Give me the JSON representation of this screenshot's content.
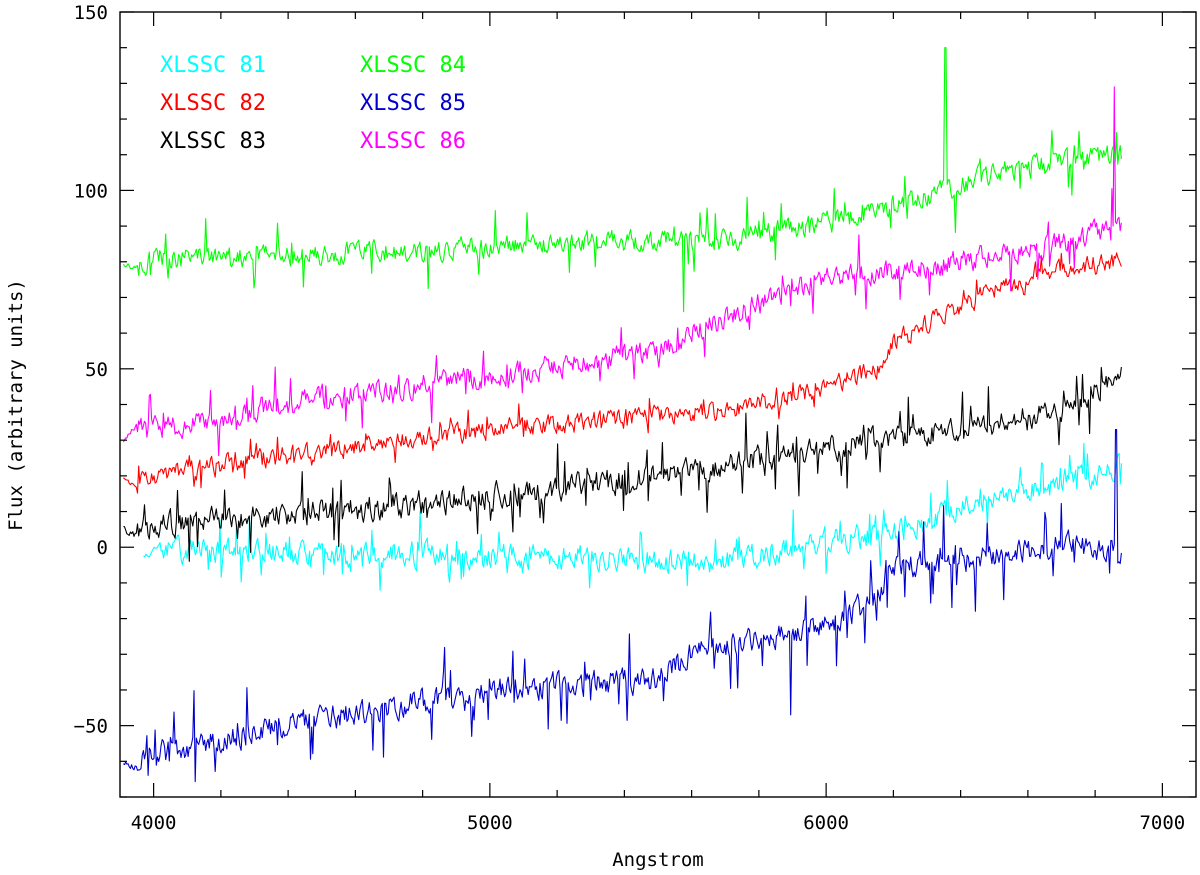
{
  "chart_data": {
    "type": "line",
    "title": "",
    "xlabel": "Angstrom",
    "ylabel": "Flux (arbitrary units)",
    "xlim": [
      3900,
      7100
    ],
    "ylim": [
      -70,
      150
    ],
    "xticks": [
      4000,
      5000,
      6000,
      7000
    ],
    "xtick_labels": [
      "4000",
      "5000",
      "6000",
      "7000"
    ],
    "yticks": [
      -50,
      0,
      50,
      100,
      150
    ],
    "ytick_labels": [
      "−50",
      "0",
      "50",
      "100",
      "150"
    ],
    "legend_position": "top-left",
    "grid": false,
    "series": [
      {
        "name": "XLSSC 81",
        "color": "#00ffff",
        "seed": 81,
        "noise": 3.8,
        "spike_rate": 0.07,
        "spike_size": 9,
        "anchors": [
          [
            3970,
            -3
          ],
          [
            4000,
            -1
          ],
          [
            4500,
            -2
          ],
          [
            5000,
            -2
          ],
          [
            5500,
            -4
          ],
          [
            5700,
            -4
          ],
          [
            6000,
            2
          ],
          [
            6200,
            4
          ],
          [
            6500,
            14
          ],
          [
            6880,
            22
          ]
        ]
      },
      {
        "name": "XLSSC 82",
        "color": "#ff0000",
        "seed": 82,
        "noise": 3.0,
        "spike_rate": 0.05,
        "spike_size": 6,
        "anchors": [
          [
            3910,
            19
          ],
          [
            3950,
            17
          ],
          [
            4000,
            20
          ],
          [
            4500,
            27
          ],
          [
            5000,
            33
          ],
          [
            5500,
            37
          ],
          [
            5700,
            38
          ],
          [
            6000,
            45
          ],
          [
            6150,
            50
          ],
          [
            6200,
            57
          ],
          [
            6400,
            68
          ],
          [
            6600,
            76
          ],
          [
            6800,
            79
          ],
          [
            6880,
            80
          ]
        ]
      },
      {
        "name": "XLSSC 83",
        "color": "#000000",
        "seed": 83,
        "noise": 4.0,
        "spike_rate": 0.08,
        "spike_size": 11,
        "anchors": [
          [
            3910,
            5
          ],
          [
            3950,
            3
          ],
          [
            4000,
            6
          ],
          [
            4500,
            10
          ],
          [
            5000,
            14
          ],
          [
            5500,
            20
          ],
          [
            5700,
            23
          ],
          [
            6000,
            28
          ],
          [
            6500,
            34
          ],
          [
            6700,
            38
          ],
          [
            6880,
            50
          ]
        ]
      },
      {
        "name": "XLSSC 84",
        "color": "#00ff00",
        "seed": 84,
        "noise": 3.3,
        "spike_rate": 0.06,
        "spike_size": 10,
        "anchors": [
          [
            3910,
            80
          ],
          [
            3950,
            78
          ],
          [
            4000,
            81
          ],
          [
            4500,
            82
          ],
          [
            5000,
            84
          ],
          [
            5500,
            86
          ],
          [
            5700,
            86
          ],
          [
            6000,
            91
          ],
          [
            6200,
            95
          ],
          [
            6500,
            105
          ],
          [
            6880,
            110
          ]
        ]
      },
      {
        "name": "XLSSC 85",
        "color": "#0000cc",
        "seed": 85,
        "noise": 3.8,
        "spike_rate": 0.08,
        "spike_size": 13,
        "anchors": [
          [
            3910,
            -60
          ],
          [
            3950,
            -62
          ],
          [
            4000,
            -58
          ],
          [
            4500,
            -48
          ],
          [
            5000,
            -40
          ],
          [
            5500,
            -37
          ],
          [
            5600,
            -30
          ],
          [
            6000,
            -22
          ],
          [
            6150,
            -15
          ],
          [
            6200,
            -5
          ],
          [
            6500,
            -3
          ],
          [
            6700,
            1
          ],
          [
            6880,
            -2
          ]
        ]
      },
      {
        "name": "XLSSC 86",
        "color": "#ff00ff",
        "seed": 86,
        "noise": 3.6,
        "spike_rate": 0.06,
        "spike_size": 9,
        "anchors": [
          [
            3910,
            30
          ],
          [
            3950,
            34
          ],
          [
            4000,
            33
          ],
          [
            4500,
            42
          ],
          [
            5000,
            48
          ],
          [
            5500,
            55
          ],
          [
            5600,
            60
          ],
          [
            6000,
            76
          ],
          [
            6300,
            78
          ],
          [
            6500,
            82
          ],
          [
            6700,
            85
          ],
          [
            6880,
            90
          ]
        ]
      }
    ],
    "spikes": [
      {
        "series": "XLSSC 84",
        "x": 6355,
        "y": 140
      },
      {
        "series": "XLSSC 86",
        "x": 6858,
        "y": 129
      },
      {
        "series": "XLSSC 85",
        "x": 6862,
        "y": 33
      },
      {
        "series": "XLSSC 85",
        "x": 5895,
        "y": -47
      },
      {
        "series": "XLSSC 84",
        "x": 5575,
        "y": 66
      }
    ]
  }
}
